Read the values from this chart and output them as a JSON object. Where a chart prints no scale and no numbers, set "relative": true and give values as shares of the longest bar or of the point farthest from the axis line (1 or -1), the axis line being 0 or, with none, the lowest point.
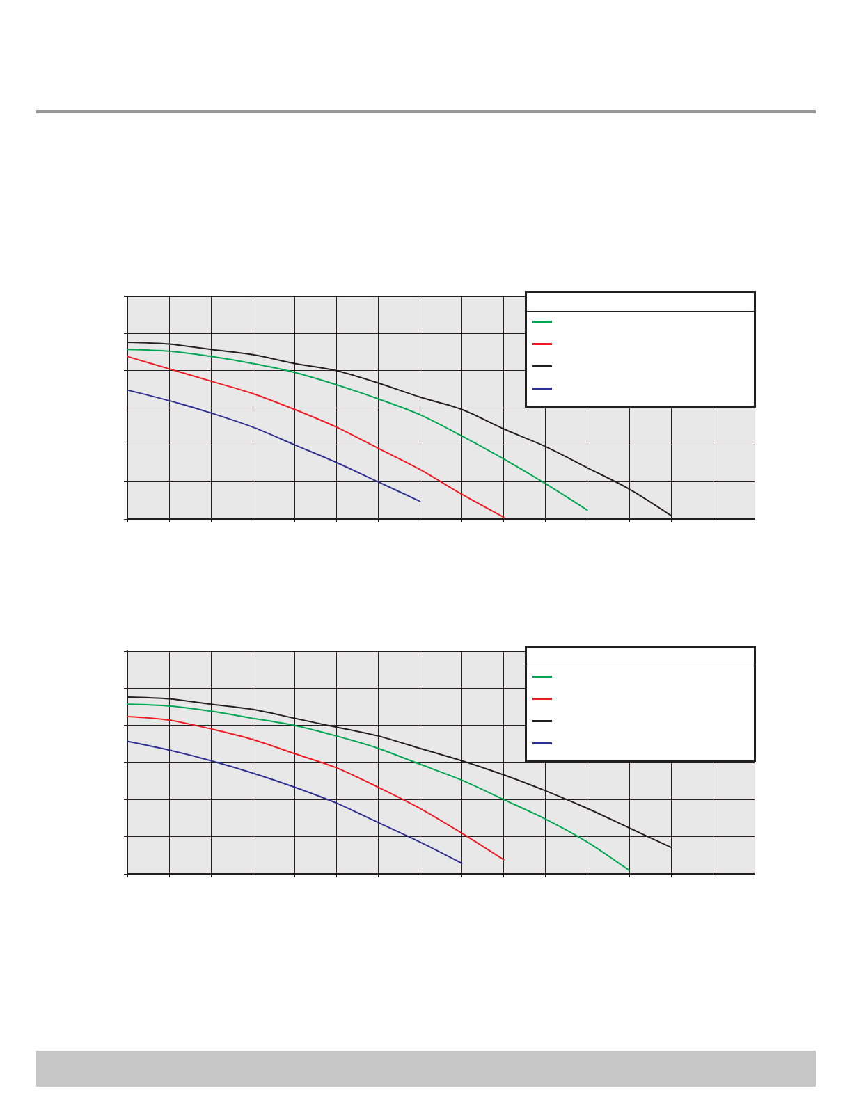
{
  "chart_data": [
    {
      "type": "line",
      "relative": true,
      "grid": true,
      "marker": "none",
      "line_style": "solid",
      "categories": [
        null,
        null,
        null,
        null,
        null,
        null,
        null,
        null,
        null,
        null,
        null,
        null,
        null,
        null,
        null,
        null
      ],
      "series": [
        {
          "color": "#00a651",
          "values": [
            0.96,
            0.95,
            0.92,
            0.88,
            0.83,
            0.76,
            0.68,
            0.59,
            0.47,
            0.34,
            0.2,
            0.05,
            null,
            null,
            null,
            null
          ]
        },
        {
          "color": "#ed1c24",
          "values": [
            0.92,
            0.85,
            0.78,
            0.71,
            0.62,
            0.52,
            0.4,
            0.28,
            0.14,
            0.01,
            null,
            null,
            null,
            null,
            null,
            null
          ]
        },
        {
          "color": "#231f20",
          "values": [
            1,
            0.99,
            0.96,
            0.93,
            0.88,
            0.84,
            0.77,
            0.69,
            0.62,
            0.51,
            0.41,
            0.29,
            0.17,
            0.02,
            null,
            null
          ]
        },
        {
          "color": "#2e3192",
          "values": [
            0.73,
            0.67,
            0.6,
            0.52,
            0.42,
            0.32,
            0.21,
            0.1,
            null,
            null,
            null,
            null,
            null,
            null,
            null,
            null
          ]
        }
      ]
    },
    {
      "type": "line",
      "relative": true,
      "grid": true,
      "marker": "none",
      "line_style": "solid",
      "categories": [
        null,
        null,
        null,
        null,
        null,
        null,
        null,
        null,
        null,
        null,
        null,
        null,
        null,
        null,
        null,
        null
      ],
      "series": [
        {
          "color": "#00a651",
          "values": [
            0.96,
            0.95,
            0.92,
            0.88,
            0.84,
            0.78,
            0.71,
            0.62,
            0.53,
            0.42,
            0.31,
            0.18,
            0.02,
            null,
            null,
            null
          ]
        },
        {
          "color": "#ed1c24",
          "values": [
            0.89,
            0.87,
            0.82,
            0.76,
            0.68,
            0.6,
            0.49,
            0.37,
            0.23,
            0.08,
            null,
            null,
            null,
            null,
            null,
            null
          ]
        },
        {
          "color": "#231f20",
          "values": [
            1,
            0.99,
            0.96,
            0.93,
            0.88,
            0.83,
            0.78,
            0.71,
            0.64,
            0.56,
            0.47,
            0.37,
            0.26,
            0.15,
            null,
            null
          ]
        },
        {
          "color": "#2e3192",
          "values": [
            0.75,
            0.7,
            0.64,
            0.57,
            0.49,
            0.4,
            0.29,
            0.18,
            0.06,
            null,
            null,
            null,
            null,
            null,
            null,
            null
          ]
        }
      ]
    }
  ]
}
